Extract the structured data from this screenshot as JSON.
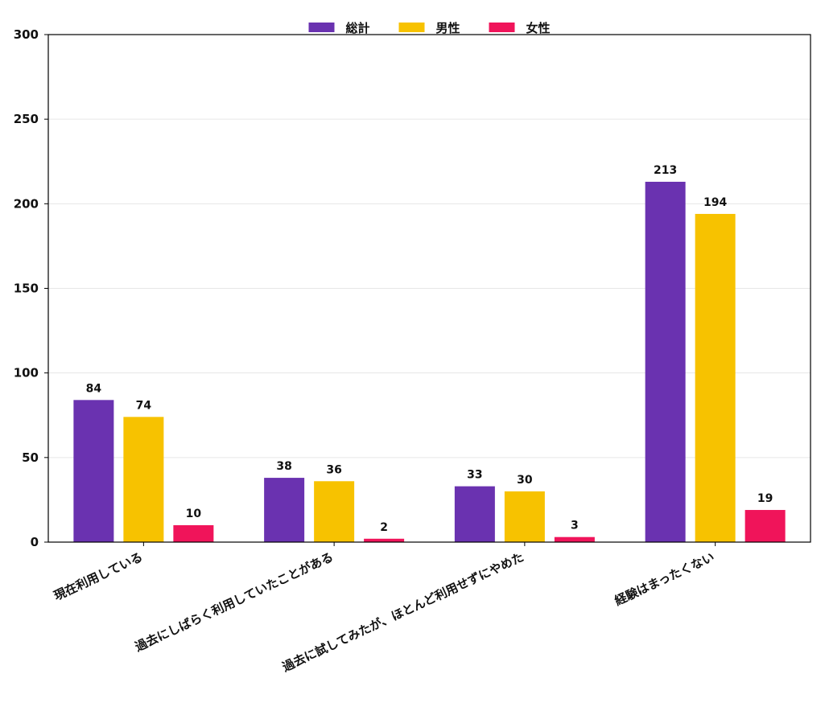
{
  "chart_data": {
    "type": "bar",
    "categories": [
      "現在利用している",
      "過去にしばらく利用していたことがある",
      "過去に試してみたが、ほとんど利用せずにやめた",
      "経験はまったくない"
    ],
    "series": [
      {
        "name": "総計",
        "color": "#6a32b0",
        "values": [
          84,
          38,
          33,
          213
        ]
      },
      {
        "name": "男性",
        "color": "#f7c200",
        "values": [
          74,
          36,
          30,
          194
        ]
      },
      {
        "name": "女性",
        "color": "#f0145a",
        "values": [
          10,
          2,
          3,
          19
        ]
      }
    ],
    "title": "",
    "xlabel": "",
    "ylabel": "",
    "ylim": [
      0,
      300
    ],
    "yticks": [
      "0",
      "50",
      "100",
      "150",
      "200",
      "250",
      "300"
    ],
    "grid": "horizontal",
    "legend_position": "top-center"
  }
}
